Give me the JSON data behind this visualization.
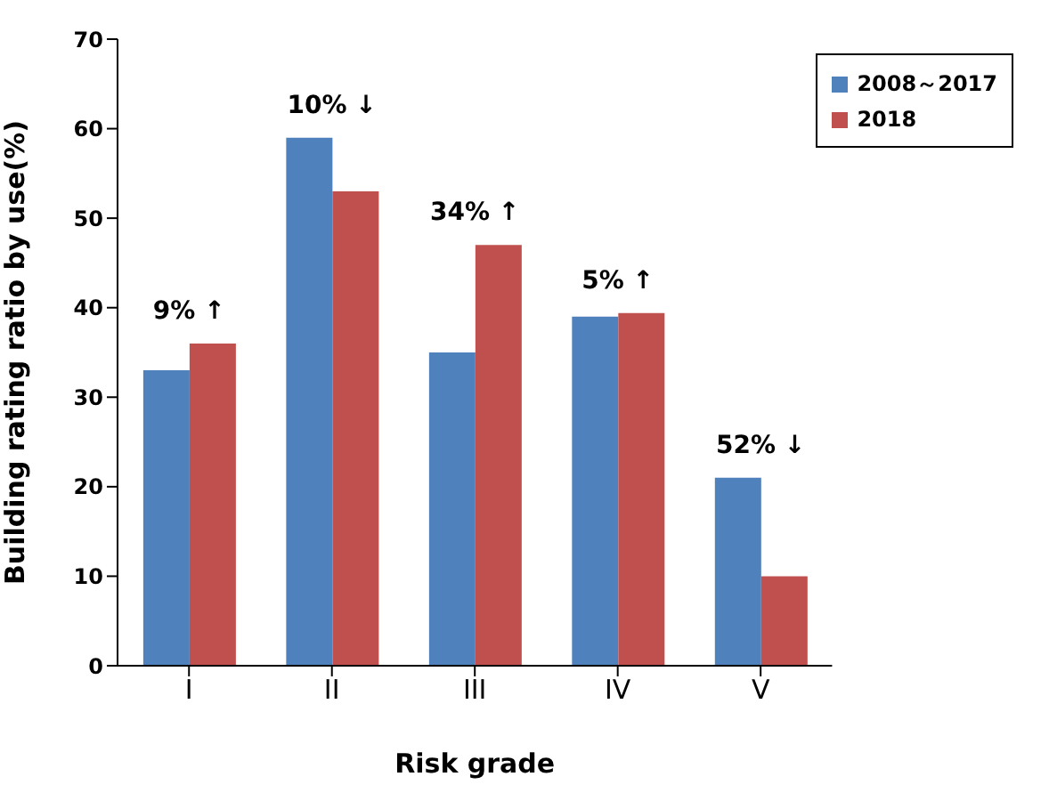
{
  "chart_data": {
    "type": "bar",
    "xlabel": "Risk grade",
    "ylabel": "Building rating ratio by use(%)",
    "categories": [
      "I",
      "II",
      "III",
      "IV",
      "V"
    ],
    "series": [
      {
        "name": "2008～2017",
        "color": "#4f81bd",
        "values": [
          33,
          59,
          35,
          39,
          21
        ]
      },
      {
        "name": "2018",
        "color": "#c0504d",
        "values": [
          36,
          53,
          47,
          39.4,
          10
        ]
      }
    ],
    "ylim": [
      0,
      70
    ],
    "yticks": [
      0,
      10,
      20,
      30,
      40,
      50,
      60,
      70
    ],
    "grid": false,
    "legend": "top right",
    "annotations": [
      {
        "text": "9% ↑",
        "x": "I",
        "y": 36
      },
      {
        "text": "10% ↓",
        "x": "II",
        "y": 59
      },
      {
        "text": "34% ↑",
        "x": "III",
        "y": 47
      },
      {
        "text": "5% ↑",
        "x": "IV",
        "y": 39.4
      },
      {
        "text": "52% ↓",
        "x": "V",
        "y": 21
      }
    ]
  }
}
